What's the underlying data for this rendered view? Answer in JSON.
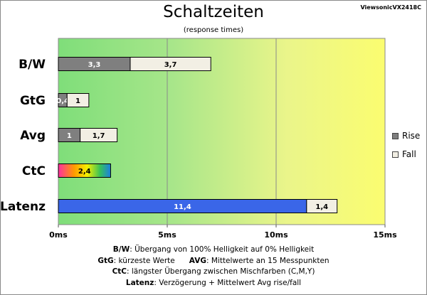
{
  "header": {
    "title": "Schaltzeiten",
    "subtitle": "(response times)",
    "model": "ViewsonicVX2418C"
  },
  "chart_data": {
    "type": "bar",
    "orientation": "horizontal",
    "stacked": true,
    "title": "Schaltzeiten",
    "subtitle": "(response times)",
    "categories": [
      "B/W",
      "GtG",
      "Avg",
      "CtC",
      "Latenz"
    ],
    "series": [
      {
        "name": "Rise",
        "color": "#7f7f7f",
        "values": [
          3.3,
          0.4,
          1,
          2.4,
          11.4
        ],
        "labels": [
          "3,3",
          "0,4",
          "1",
          "2,4",
          "11,4"
        ]
      },
      {
        "name": "Fall",
        "color": "#f2efe4",
        "values": [
          3.7,
          1,
          1.7,
          null,
          1.4
        ],
        "labels": [
          "3,7",
          "1",
          "1,7",
          "",
          "1,4"
        ]
      }
    ],
    "special_colors": {
      "CtC": "rainbow",
      "Latenz": "#3a66e8"
    },
    "xlim": [
      0,
      15
    ],
    "xticks": [
      "0ms",
      "5ms",
      "10ms",
      "15ms"
    ],
    "background": "gradient green-to-yellow",
    "grid": true,
    "legend_position": "right"
  },
  "legend": {
    "rise": "Rise",
    "fall": "Fall"
  },
  "notes": [
    {
      "key": "B/W",
      "text": ":  Übergang von 100% Helligkeit auf 0% Helligkeit"
    },
    {
      "key": "GtG",
      "text": ": kürzeste  Werte",
      "key2": "AVG",
      "text2": ":  Mittelwerte  an 15 Messpunkten"
    },
    {
      "key": "CtC",
      "text": ": längster Übergang  zwischen Mischfarben  (C,M,Y)"
    },
    {
      "key": "Latenz",
      "text": ": Verzögerung  + Mittelwert  Avg rise/fall"
    }
  ]
}
